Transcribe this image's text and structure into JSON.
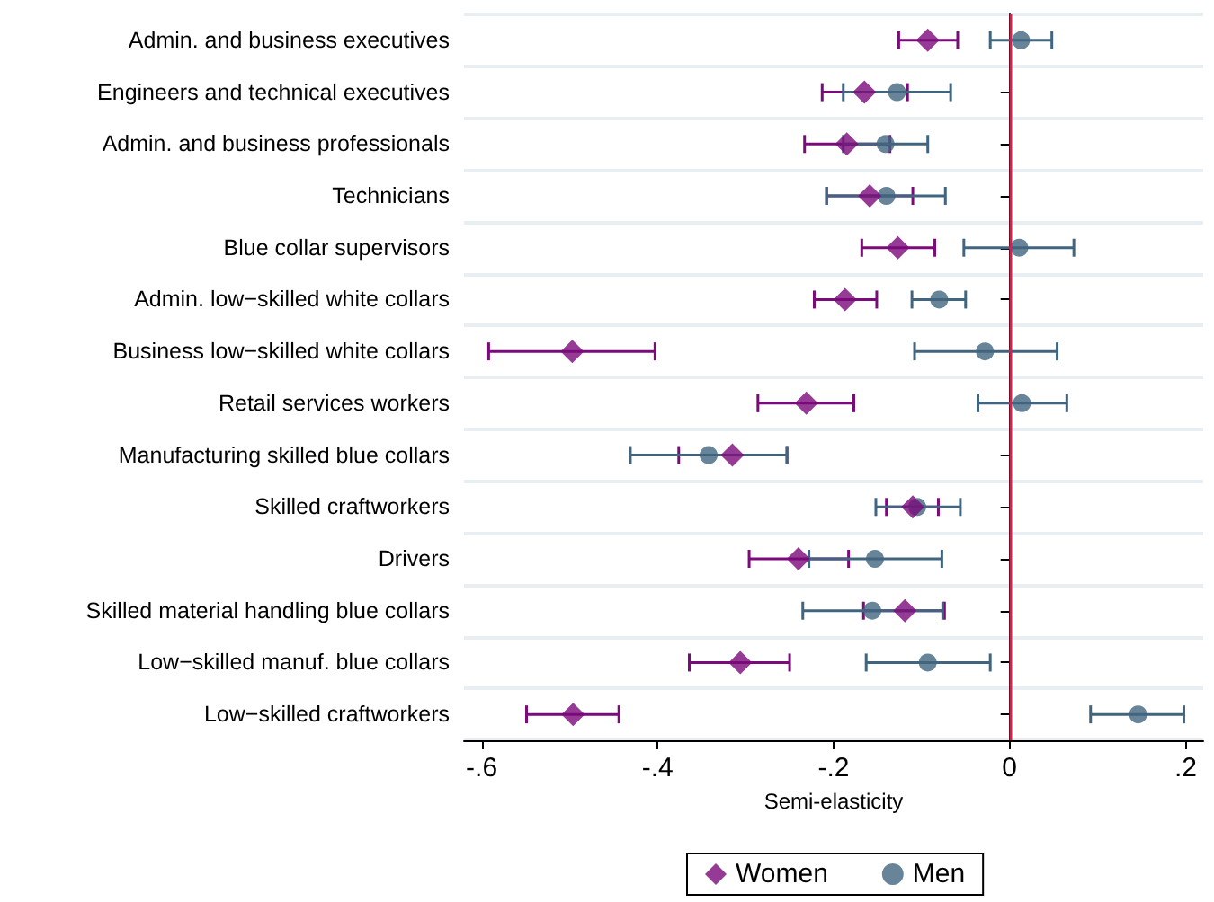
{
  "chart_data": {
    "type": "scatter",
    "orientation": "horizontal",
    "xlabel": "Semi-elasticity",
    "categories": [
      "Admin. and business executives",
      "Engineers and technical executives",
      "Admin. and business professionals",
      "Technicians",
      "Blue collar supervisors",
      "Admin. low−skilled white collars",
      "Business low−skilled white collars",
      "Retail services workers",
      "Manufacturing skilled blue collars",
      "Skilled craftworkers",
      "Drivers",
      "Skilled material handling blue collars",
      "Low−skilled manuf. blue collars",
      "Low−skilled craftworkers"
    ],
    "series": [
      {
        "name": "Women",
        "color": "#7b0a7b",
        "marker": "diamond",
        "values": [
          -0.093,
          -0.165,
          -0.185,
          -0.159,
          -0.127,
          -0.187,
          -0.497,
          -0.231,
          -0.315,
          -0.11,
          -0.24,
          -0.119,
          -0.306,
          -0.496
        ],
        "errors": [
          [
            -0.126,
            -0.059
          ],
          [
            -0.213,
            -0.116
          ],
          [
            -0.233,
            -0.136
          ],
          [
            -0.208,
            -0.11
          ],
          [
            -0.168,
            -0.085
          ],
          [
            -0.222,
            -0.151
          ],
          [
            -0.592,
            -0.403
          ],
          [
            -0.286,
            -0.177
          ],
          [
            -0.376,
            -0.253
          ],
          [
            -0.14,
            -0.081
          ],
          [
            -0.296,
            -0.183
          ],
          [
            -0.166,
            -0.074
          ],
          [
            -0.364,
            -0.25
          ],
          [
            -0.549,
            -0.444
          ]
        ]
      },
      {
        "name": "Men",
        "color": "#41657f",
        "marker": "circle",
        "values": [
          0.013,
          -0.128,
          -0.141,
          -0.14,
          0.011,
          -0.08,
          -0.028,
          0.014,
          -0.342,
          -0.105,
          -0.153,
          -0.156,
          -0.093,
          0.146
        ],
        "errors": [
          [
            -0.022,
            0.048
          ],
          [
            -0.189,
            -0.067
          ],
          [
            -0.189,
            -0.093
          ],
          [
            -0.208,
            -0.073
          ],
          [
            -0.052,
            0.073
          ],
          [
            -0.111,
            -0.05
          ],
          [
            -0.108,
            0.054
          ],
          [
            -0.036,
            0.065
          ],
          [
            -0.431,
            -0.253
          ],
          [
            -0.152,
            -0.056
          ],
          [
            -0.228,
            -0.077
          ],
          [
            -0.235,
            -0.076
          ],
          [
            -0.163,
            -0.022
          ],
          [
            0.092,
            0.198
          ]
        ]
      }
    ],
    "xlim": [
      -0.62,
      0.22
    ],
    "xticks": [
      {
        "value": -0.6,
        "label": "-.6"
      },
      {
        "value": -0.4,
        "label": "-.4"
      },
      {
        "value": -0.2,
        "label": "-.2"
      },
      0,
      {
        "value": 0.2,
        "label": ".2"
      }
    ],
    "ref_lines": [
      {
        "axis": "x",
        "value": 0,
        "color": "#d6204e"
      }
    ],
    "grid": "y",
    "legend": "bottom"
  }
}
